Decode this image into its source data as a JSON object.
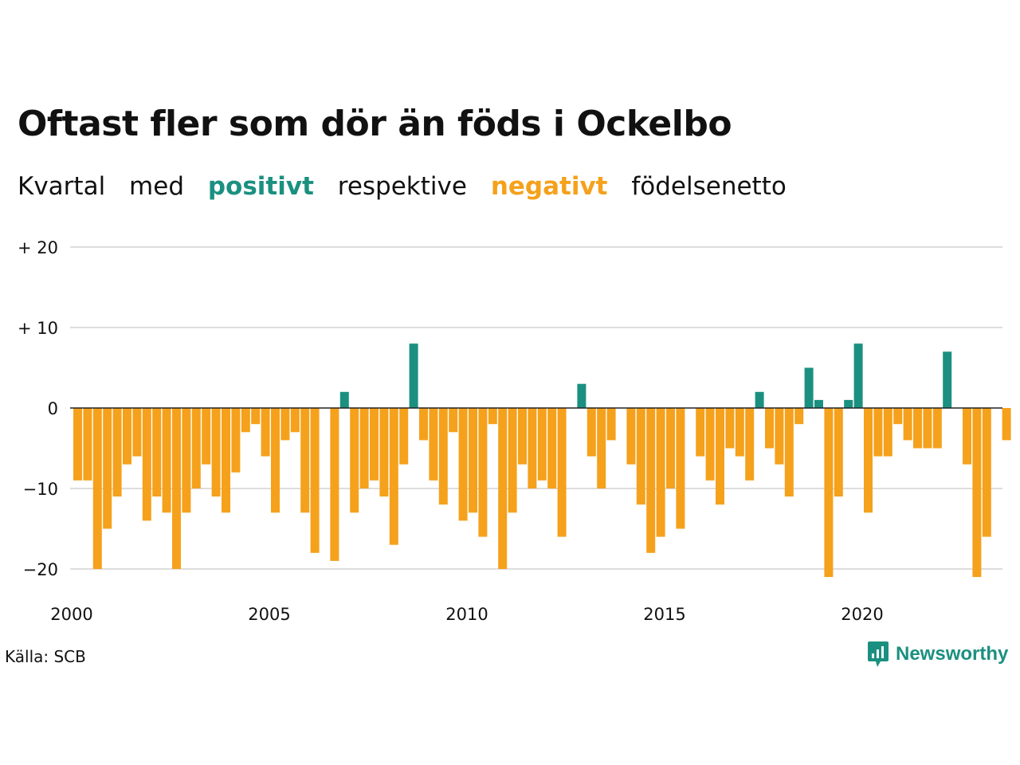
{
  "title": "Oftast fler som dör än föds i Ockelbo",
  "subtitle": {
    "w1": "Kvartal",
    "w2": "med",
    "positive": "positivt",
    "w3": "respektive",
    "negative": "negativt",
    "w4": "födelsenetto"
  },
  "source": "Källa: SCB",
  "logo": {
    "text": "Newsworthy",
    "icon": "newsworthy-logo-icon"
  },
  "colors": {
    "positive": "#1b9080",
    "negative": "#f5a11c",
    "grid": "#dddddd",
    "zero_line": "#222222"
  },
  "chart_data": {
    "type": "bar",
    "title": "Oftast fler som dör än föds i Ockelbo",
    "xlabel": "",
    "ylabel": "",
    "ylim": [
      -22,
      20
    ],
    "y_ticks": [
      {
        "value": 20,
        "label": "+ 20"
      },
      {
        "value": 10,
        "label": "+ 10"
      },
      {
        "value": 0,
        "label": "0"
      },
      {
        "value": -10,
        "label": "−10"
      },
      {
        "value": -20,
        "label": "−20"
      }
    ],
    "x_ticks": [
      {
        "value": 2000,
        "label": "2000"
      },
      {
        "value": 2005,
        "label": "2005"
      },
      {
        "value": 2010,
        "label": "2010"
      },
      {
        "value": 2015,
        "label": "2015"
      },
      {
        "value": 2020,
        "label": "2020"
      }
    ],
    "first_period": "2000 Q1",
    "grid": true,
    "values": [
      -9,
      -9,
      -20,
      -15,
      -11,
      -7,
      -6,
      -14,
      -11,
      -13,
      -20,
      -13,
      -10,
      -7,
      -11,
      -13,
      -8,
      -3,
      -2,
      -6,
      -13,
      -4,
      -3,
      -13,
      -18,
      0,
      -19,
      2,
      -13,
      -10,
      -9,
      -11,
      -17,
      -7,
      8,
      -4,
      -9,
      -12,
      -3,
      -14,
      -13,
      -16,
      -2,
      -20,
      -13,
      -7,
      -10,
      -9,
      -10,
      -16,
      0,
      3,
      -6,
      -10,
      -4,
      0,
      -7,
      -12,
      -18,
      -16,
      -10,
      -15,
      0,
      -6,
      -9,
      -12,
      -5,
      -6,
      -9,
      2,
      -5,
      -7,
      -11,
      -2,
      5,
      1,
      -21,
      -11,
      1,
      8,
      -13,
      -6,
      -6,
      -2,
      -4,
      -5,
      -5,
      -5,
      7,
      0,
      -7,
      -21,
      -16,
      0,
      -4
    ]
  }
}
